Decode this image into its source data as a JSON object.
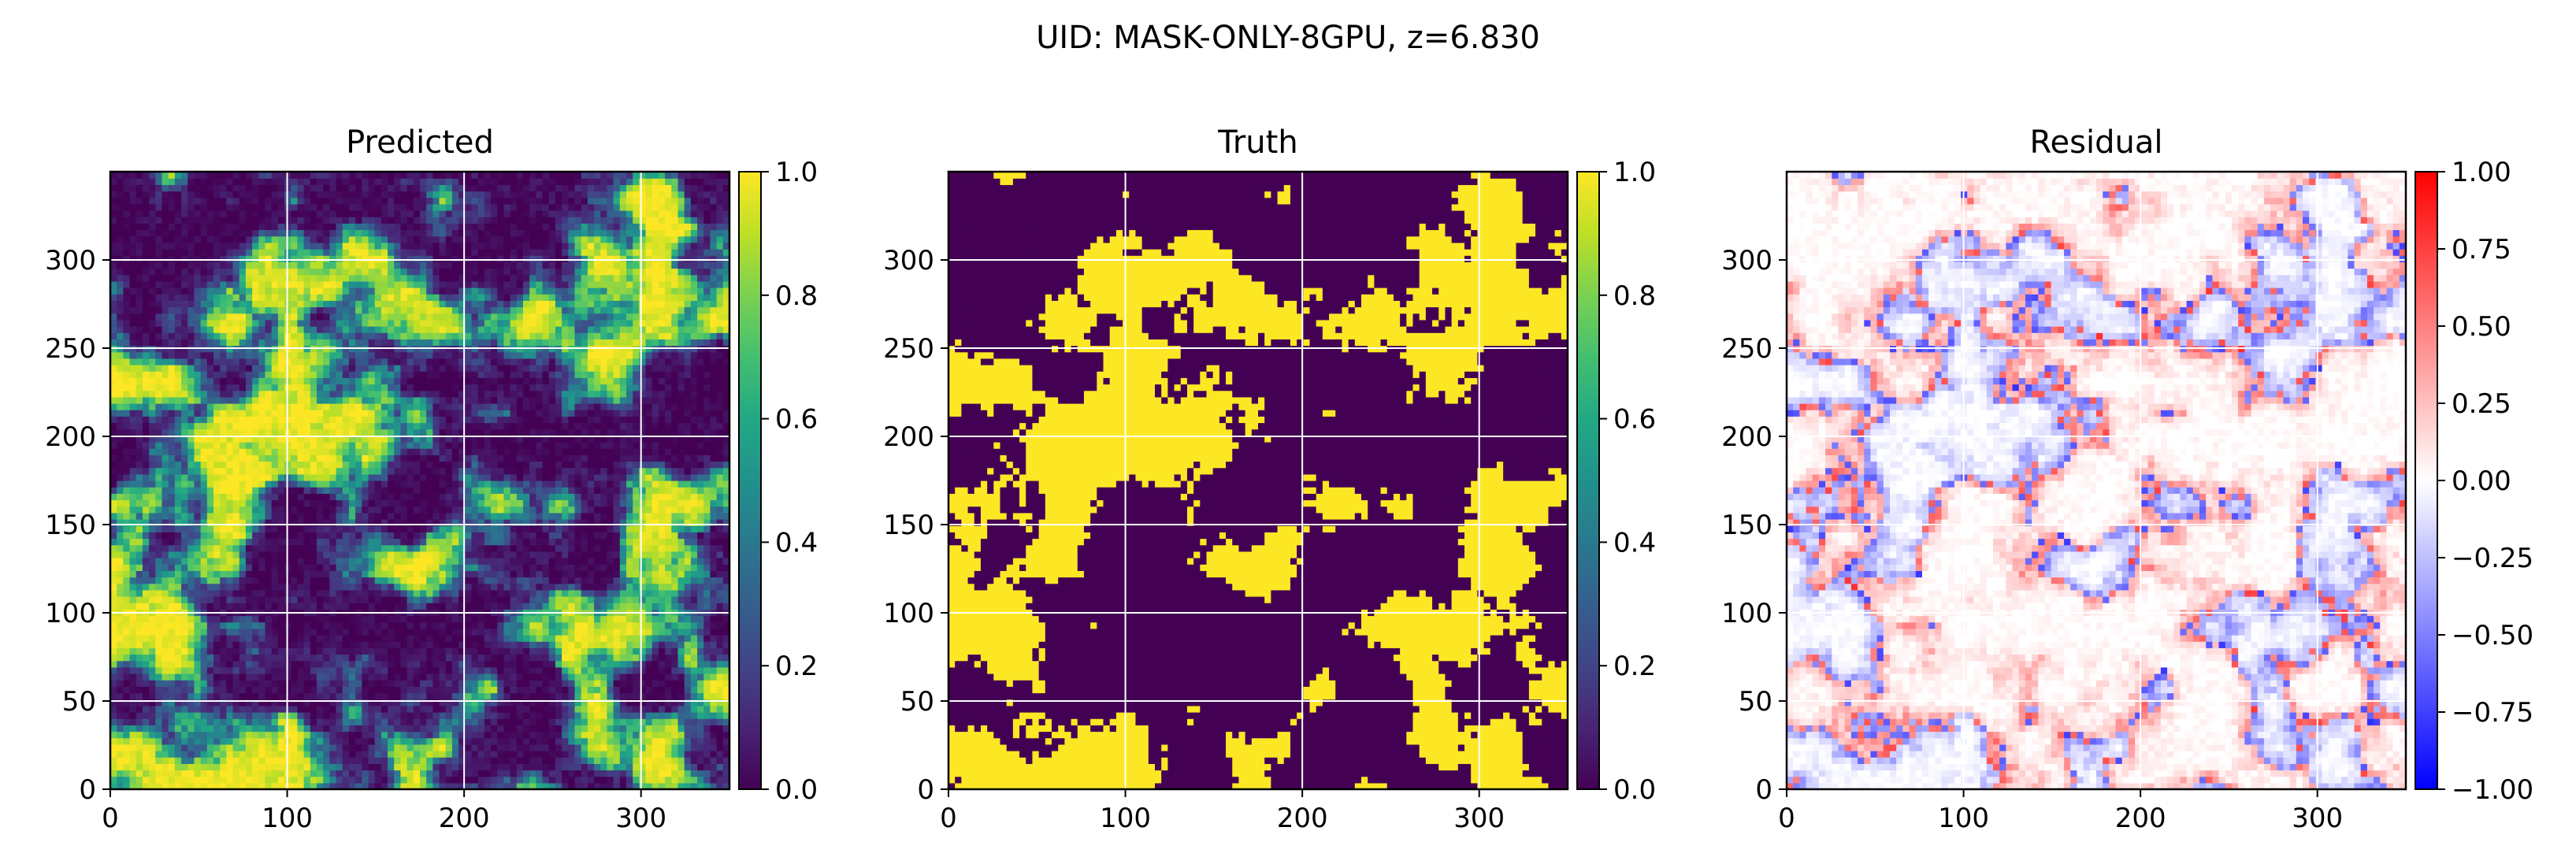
{
  "suptitle": "UID: MASK-ONLY-8GPU, z=6.830",
  "chart_data": [
    {
      "type": "heatmap",
      "title": "Predicted",
      "colormap": "viridis",
      "xlim": [
        0,
        350
      ],
      "ylim": [
        0,
        350
      ],
      "xticks": [
        0,
        100,
        200,
        300
      ],
      "yticks": [
        0,
        50,
        100,
        150,
        200,
        250,
        300
      ],
      "grid": true,
      "colorbar": {
        "range": [
          0.0,
          1.0
        ],
        "ticks": [
          "0.0",
          "0.2",
          "0.4",
          "0.6",
          "0.8",
          "1.0"
        ]
      }
    },
    {
      "type": "heatmap",
      "title": "Truth",
      "colormap": "viridis",
      "xlim": [
        0,
        350
      ],
      "ylim": [
        0,
        350
      ],
      "xticks": [
        0,
        100,
        200,
        300
      ],
      "yticks": [
        0,
        50,
        100,
        150,
        200,
        250,
        300
      ],
      "grid": true,
      "colorbar": {
        "range": [
          0.0,
          1.0
        ],
        "ticks": [
          "0.0",
          "0.2",
          "0.4",
          "0.6",
          "0.8",
          "1.0"
        ]
      }
    },
    {
      "type": "heatmap",
      "title": "Residual",
      "colormap": "bwr",
      "xlim": [
        0,
        350
      ],
      "ylim": [
        0,
        350
      ],
      "xticks": [
        0,
        100,
        200,
        300
      ],
      "yticks": [
        0,
        50,
        100,
        150,
        200,
        250,
        300
      ],
      "grid": true,
      "colorbar": {
        "range": [
          -1.0,
          1.0
        ],
        "ticks": [
          "−1.00",
          "−0.75",
          "−0.50",
          "−0.25",
          "0.00",
          "0.25",
          "0.50",
          "0.75",
          "1.00"
        ]
      }
    }
  ]
}
